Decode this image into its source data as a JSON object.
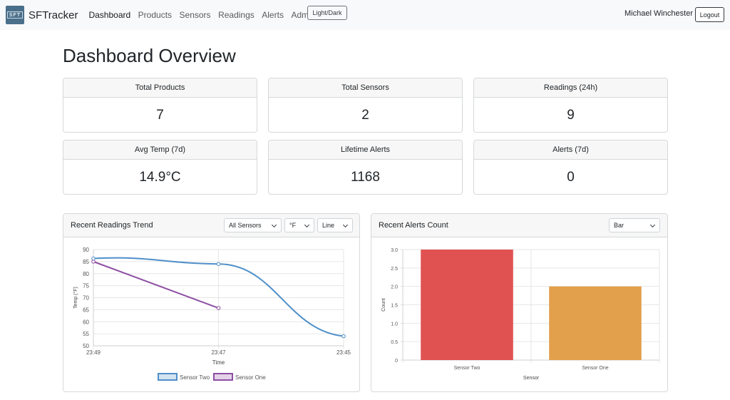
{
  "navbar": {
    "logo_text": "SFT",
    "brand": "SFTracker",
    "links": [
      {
        "label": "Dashboard",
        "active": true
      },
      {
        "label": "Products"
      },
      {
        "label": "Sensors"
      },
      {
        "label": "Readings"
      },
      {
        "label": "Alerts"
      },
      {
        "label": "Admin",
        "dropdown": true
      }
    ],
    "theme_toggle": "Light/Dark",
    "user_name": "Michael Winchester",
    "logout": "Logout"
  },
  "page": {
    "title": "Dashboard Overview"
  },
  "stats": [
    {
      "label": "Total Products",
      "value": "7"
    },
    {
      "label": "Total Sensors",
      "value": "2"
    },
    {
      "label": "Readings (24h)",
      "value": "9"
    },
    {
      "label": "Avg Temp (7d)",
      "value": "14.9°C"
    },
    {
      "label": "Lifetime Alerts",
      "value": "1168"
    },
    {
      "label": "Alerts (7d)",
      "value": "0"
    }
  ],
  "readings_card": {
    "title": "Recent Readings Trend",
    "sensor_select": "All Sensors",
    "unit_select": "°F",
    "type_select": "Line"
  },
  "alerts_card": {
    "title": "Recent Alerts Count",
    "type_select": "Bar"
  },
  "colors": {
    "sensor_two": "#4e8fc9",
    "sensor_one": "#8e4fa3",
    "bar_red": "#e05252",
    "bar_orange": "#e2a04c"
  },
  "chart_data": [
    {
      "type": "line",
      "x": [
        "23:49",
        "23:47",
        "23:45"
      ],
      "series": [
        {
          "name": "Sensor Two",
          "values": [
            86.3,
            84,
            54
          ]
        },
        {
          "name": "Sensor One",
          "values": [
            85,
            65.7,
            null
          ]
        }
      ],
      "xlabel": "Time",
      "ylabel": "Temp (°F)",
      "ylim": [
        50,
        90
      ],
      "yticks": [
        50,
        55,
        60,
        65,
        70,
        75,
        80,
        85,
        90
      ],
      "grid": true,
      "legend": "bottom"
    },
    {
      "type": "bar",
      "categories": [
        "Sensor Two",
        "Sensor One"
      ],
      "values": [
        3,
        2
      ],
      "xlabel": "Sensor",
      "ylabel": "Count",
      "ylim": [
        0,
        3
      ],
      "yticks": [
        "0",
        "0.5",
        "1.0",
        "1.5",
        "2.0",
        "2.5",
        "3.0"
      ],
      "grid": true
    }
  ]
}
